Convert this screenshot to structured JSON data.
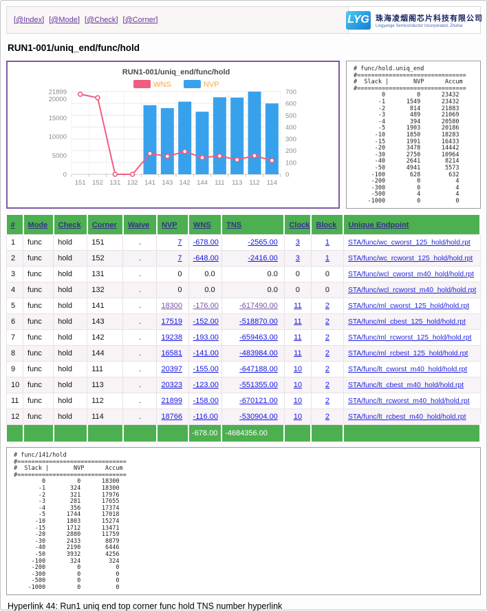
{
  "nav": {
    "bracket_open": "[",
    "bracket_close": "]",
    "links": [
      {
        "id": "index",
        "label": "@Index"
      },
      {
        "id": "mode",
        "label": "@Mode"
      },
      {
        "id": "check",
        "label": "@Check"
      },
      {
        "id": "corner",
        "label": "@Corner"
      }
    ]
  },
  "logo": {
    "monogram": "LYG",
    "company_cn": "珠海凌烟阁芯片科技有限公司",
    "company_en": "Lingyange Semiconductor Incorporated, Zhuhai"
  },
  "page_title": "RUN1-001/uniq_end/func/hold",
  "chart_data": {
    "type": "bar+line combo",
    "title": "RUN1-001/uniq_end/func/hold",
    "categories": [
      "151",
      "152",
      "131",
      "132",
      "141",
      "143",
      "142",
      "144",
      "111",
      "113",
      "112",
      "114"
    ],
    "series": [
      {
        "name": "WNS",
        "type": "line",
        "axis": "right",
        "color": "#f15c80",
        "note": "absolute WNS values plotted on right axis",
        "values": [
          678,
          648,
          0,
          0,
          176,
          152,
          193,
          141,
          155,
          123,
          158,
          116
        ]
      },
      {
        "name": "NVP",
        "type": "bar",
        "axis": "left",
        "color": "#38a1ec",
        "values": [
          7,
          7,
          0,
          0,
          18300,
          17519,
          19238,
          16581,
          20397,
          20323,
          21899,
          18766
        ]
      }
    ],
    "left_axis": {
      "ticks": [
        0,
        5000,
        10000,
        15000,
        20000,
        21899
      ],
      "max": 21899
    },
    "right_axis": {
      "ticks": [
        0,
        100,
        200,
        300,
        400,
        500,
        600,
        700
      ],
      "max": 700
    },
    "legend": [
      "WNS",
      "NVP"
    ],
    "legend_text_color": "#f5a83e",
    "grid": true,
    "legend_position": "top-center"
  },
  "uniq_stats": {
    "title": "# func/hold.uniq_end",
    "separator": "#===============================",
    "columns_line": "#  Slack |       NVP      Accum",
    "rows": [
      [
        0,
        0,
        23432
      ],
      [
        -1,
        1549,
        23432
      ],
      [
        -2,
        814,
        21883
      ],
      [
        -3,
        489,
        21069
      ],
      [
        -4,
        394,
        20580
      ],
      [
        -5,
        1903,
        20186
      ],
      [
        -10,
        1850,
        18283
      ],
      [
        -15,
        1991,
        16433
      ],
      [
        -20,
        3478,
        14442
      ],
      [
        -30,
        2750,
        10964
      ],
      [
        -40,
        2641,
        8214
      ],
      [
        -50,
        4941,
        5573
      ],
      [
        -100,
        628,
        632
      ],
      [
        -200,
        0,
        4
      ],
      [
        -300,
        0,
        4
      ],
      [
        -500,
        4,
        4
      ],
      [
        -1000,
        0,
        0
      ]
    ]
  },
  "corner_stats": {
    "title": "# func/141/hold",
    "separator": "#===============================",
    "columns_line": "#  Slack |       NVP      Accum",
    "rows": [
      [
        0,
        0,
        18300
      ],
      [
        -1,
        324,
        18300
      ],
      [
        -2,
        321,
        17976
      ],
      [
        -3,
        281,
        17655
      ],
      [
        -4,
        356,
        17374
      ],
      [
        -5,
        1744,
        17018
      ],
      [
        -10,
        1803,
        15274
      ],
      [
        -15,
        1712,
        13471
      ],
      [
        -20,
        2880,
        11759
      ],
      [
        -30,
        2433,
        8879
      ],
      [
        -40,
        2190,
        6446
      ],
      [
        -50,
        3932,
        4256
      ],
      [
        -100,
        324,
        324
      ],
      [
        -200,
        0,
        0
      ],
      [
        -300,
        0,
        0
      ],
      [
        -500,
        0,
        0
      ],
      [
        -1000,
        0,
        0
      ]
    ]
  },
  "table": {
    "headers": [
      "#",
      "Mode",
      "Check",
      "Corner",
      "Waive",
      "NVP",
      "WNS",
      "TNS",
      "Clock",
      "Block",
      "Unique Endpoint"
    ],
    "rows": [
      {
        "idx": "1",
        "mode": "func",
        "check": "hold",
        "corner": "151",
        "waive": ".",
        "nvp": "7",
        "wns": "-678.00",
        "tns": "-2565.00",
        "clock": "3",
        "block": "1",
        "endpoint": "STA/func/wc_cworst_125_hold/hold.rpt",
        "linked": true,
        "visited_nums": false
      },
      {
        "idx": "2",
        "mode": "func",
        "check": "hold",
        "corner": "152",
        "waive": ".",
        "nvp": "7",
        "wns": "-648.00",
        "tns": "-2416.00",
        "clock": "3",
        "block": "1",
        "endpoint": "STA/func/wc_rcworst_125_hold/hold.rpt",
        "linked": true,
        "visited_nums": false
      },
      {
        "idx": "3",
        "mode": "func",
        "check": "hold",
        "corner": "131",
        "waive": ".",
        "nvp": "0",
        "wns": "0.0",
        "tns": "0.0",
        "clock": "0",
        "block": "0",
        "endpoint": "STA/func/wcl_cworst_m40_hold/hold.rpt",
        "linked": false,
        "visited_nums": false
      },
      {
        "idx": "4",
        "mode": "func",
        "check": "hold",
        "corner": "132",
        "waive": ".",
        "nvp": "0",
        "wns": "0.0",
        "tns": "0.0",
        "clock": "0",
        "block": "0",
        "endpoint": "STA/func/wcl_rcworst_m40_hold/hold.rpt",
        "linked": false,
        "visited_nums": false
      },
      {
        "idx": "5",
        "mode": "func",
        "check": "hold",
        "corner": "141",
        "waive": ".",
        "nvp": "18300",
        "wns": "-176.00",
        "tns": "-617490.00",
        "clock": "11",
        "block": "2",
        "endpoint": "STA/func/ml_cworst_125_hold/hold.rpt",
        "linked": true,
        "visited_nums": true
      },
      {
        "idx": "6",
        "mode": "func",
        "check": "hold",
        "corner": "143",
        "waive": ".",
        "nvp": "17519",
        "wns": "-152.00",
        "tns": "-518870.00",
        "clock": "11",
        "block": "2",
        "endpoint": "STA/func/ml_cbest_125_hold/hold.rpt",
        "linked": true,
        "visited_nums": false
      },
      {
        "idx": "7",
        "mode": "func",
        "check": "hold",
        "corner": "142",
        "waive": ".",
        "nvp": "19238",
        "wns": "-193.00",
        "tns": "-659463.00",
        "clock": "11",
        "block": "2",
        "endpoint": "STA/func/ml_rcworst_125_hold/hold.rpt",
        "linked": true,
        "visited_nums": false
      },
      {
        "idx": "8",
        "mode": "func",
        "check": "hold",
        "corner": "144",
        "waive": ".",
        "nvp": "16581",
        "wns": "-141.00",
        "tns": "-483984.00",
        "clock": "11",
        "block": "2",
        "endpoint": "STA/func/ml_rcbest_125_hold/hold.rpt",
        "linked": true,
        "visited_nums": false
      },
      {
        "idx": "9",
        "mode": "func",
        "check": "hold",
        "corner": "111",
        "waive": ".",
        "nvp": "20397",
        "wns": "-155.00",
        "tns": "-647188.00",
        "clock": "10",
        "block": "2",
        "endpoint": "STA/func/lt_cworst_m40_hold/hold.rpt",
        "linked": true,
        "visited_nums": false
      },
      {
        "idx": "10",
        "mode": "func",
        "check": "hold",
        "corner": "113",
        "waive": ".",
        "nvp": "20323",
        "wns": "-123.00",
        "tns": "-551355.00",
        "clock": "10",
        "block": "2",
        "endpoint": "STA/func/lt_cbest_m40_hold/hold.rpt",
        "linked": true,
        "visited_nums": false
      },
      {
        "idx": "11",
        "mode": "func",
        "check": "hold",
        "corner": "112",
        "waive": ".",
        "nvp": "21899",
        "wns": "-158.00",
        "tns": "-670121.00",
        "clock": "10",
        "block": "2",
        "endpoint": "STA/func/lt_rcworst_m40_hold/hold.rpt",
        "linked": true,
        "visited_nums": false
      },
      {
        "idx": "12",
        "mode": "func",
        "check": "hold",
        "corner": "114",
        "waive": ".",
        "nvp": "18766",
        "wns": "-116.00",
        "tns": "-530904.00",
        "clock": "10",
        "block": "2",
        "endpoint": "STA/func/lt_rcbest_m40_hold/hold.rpt",
        "linked": true,
        "visited_nums": false
      }
    ],
    "footer": {
      "wns": "-678.00",
      "tns": "-4684356.00"
    }
  },
  "caption": "Hyperlink 44: Run1 uniq end top corner func hold TNS number hyperlink",
  "colors": {
    "table_header_green": "#4caf50",
    "table_header_text": "#333388",
    "link_blue": "#1515e0",
    "visited_purple": "#7a52a8",
    "chart_border_purple": "#7d58a4",
    "bar_blue": "#38a1ec",
    "line_pink": "#f15c80",
    "legend_text_orange": "#f5a83e"
  }
}
